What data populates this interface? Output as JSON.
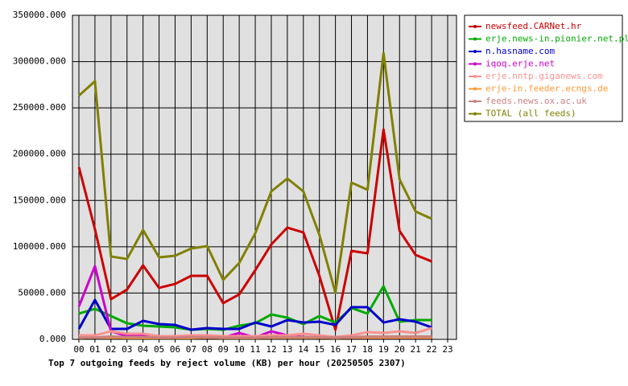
{
  "chart_data": {
    "type": "line",
    "title": "Top 7 outgoing feeds by reject volume (KB) per hour (20250505 2307)",
    "categories": [
      "00",
      "01",
      "02",
      "03",
      "04",
      "05",
      "06",
      "07",
      "08",
      "09",
      "10",
      "11",
      "12",
      "13",
      "14",
      "15",
      "16",
      "17",
      "18",
      "19",
      "20",
      "21",
      "22",
      "23"
    ],
    "ylim": [
      0,
      350000
    ],
    "yticks": [
      {
        "value": 0,
        "label": "0.000"
      },
      {
        "value": 50000,
        "label": "50000.000"
      },
      {
        "value": 100000,
        "label": "100000.000"
      },
      {
        "value": 150000,
        "label": "150000.000"
      },
      {
        "value": 200000,
        "label": "200000.000"
      },
      {
        "value": 250000,
        "label": "250000.000"
      },
      {
        "value": 300000,
        "label": "300000.000"
      },
      {
        "value": 350000,
        "label": "350000.000"
      }
    ],
    "grid": true,
    "legend": "right",
    "series": [
      {
        "name": "newsfeed.CARNet.hr",
        "color": "#cc0000",
        "values": [
          186000,
          119000,
          43400,
          53800,
          79900,
          55600,
          59900,
          68600,
          68600,
          39100,
          48600,
          74700,
          102500,
          120700,
          115500,
          68600,
          10400,
          95500,
          92900,
          226700,
          117200,
          91200,
          84200,
          null
        ]
      },
      {
        "name": "erje.news-in.pionier.net.pl",
        "color": "#00aa00",
        "values": [
          27800,
          33000,
          25200,
          17400,
          14800,
          13900,
          13000,
          10400,
          11300,
          10400,
          14800,
          17400,
          26900,
          23400,
          16500,
          25200,
          18200,
          33900,
          27800,
          57300,
          19100,
          20800,
          20800,
          null
        ]
      },
      {
        "name": "n.hasname.com",
        "color": "#0000cc",
        "values": [
          11300,
          42600,
          11300,
          11300,
          20000,
          16500,
          15600,
          10400,
          12200,
          11300,
          11300,
          18200,
          13900,
          20800,
          18200,
          19100,
          15600,
          34700,
          34700,
          18200,
          21700,
          19100,
          13000,
          null
        ]
      },
      {
        "name": "iqoq.erje.net",
        "color": "#cc00cc",
        "values": [
          35600,
          79000,
          8700,
          3500,
          3500,
          2600,
          2000,
          2000,
          2000,
          2000,
          6900,
          2000,
          8700,
          4300,
          2600,
          2000,
          2000,
          2000,
          2000,
          2000,
          2000,
          2000,
          2000,
          null
        ]
      },
      {
        "name": "erje.nntp.giganews.com",
        "color": "#ff9090",
        "values": [
          4300,
          4300,
          8700,
          6100,
          6100,
          3500,
          3500,
          4300,
          4300,
          3500,
          3500,
          3500,
          4300,
          4300,
          6100,
          4300,
          2600,
          4300,
          7800,
          6900,
          8700,
          6900,
          12200,
          null
        ]
      },
      {
        "name": "erje-in.feeder.ecngs.de",
        "color": "#ff9933",
        "values": [
          1500,
          2000,
          2000,
          1500,
          1500,
          1500,
          1500,
          1500,
          2000,
          1500,
          1500,
          1500,
          2000,
          2000,
          2000,
          2000,
          1500,
          2000,
          2000,
          2000,
          2000,
          2000,
          2000,
          null
        ]
      },
      {
        "name": "feeds.news.ox.ac.uk",
        "color": "#cc8080",
        "values": [
          2000,
          2000,
          3000,
          2500,
          2500,
          2000,
          2000,
          2500,
          2500,
          2000,
          2000,
          2000,
          2500,
          2500,
          2500,
          2500,
          2000,
          2500,
          3000,
          3000,
          3000,
          3000,
          3000,
          null
        ]
      },
      {
        "name": "TOTAL (all feeds)",
        "color": "#808000",
        "values": [
          263200,
          278800,
          89500,
          86800,
          118100,
          88600,
          90300,
          98100,
          100700,
          64300,
          82500,
          114600,
          159800,
          173700,
          159800,
          112900,
          50400,
          169300,
          161500,
          309200,
          172800,
          138100,
          130300,
          null
        ]
      }
    ]
  }
}
